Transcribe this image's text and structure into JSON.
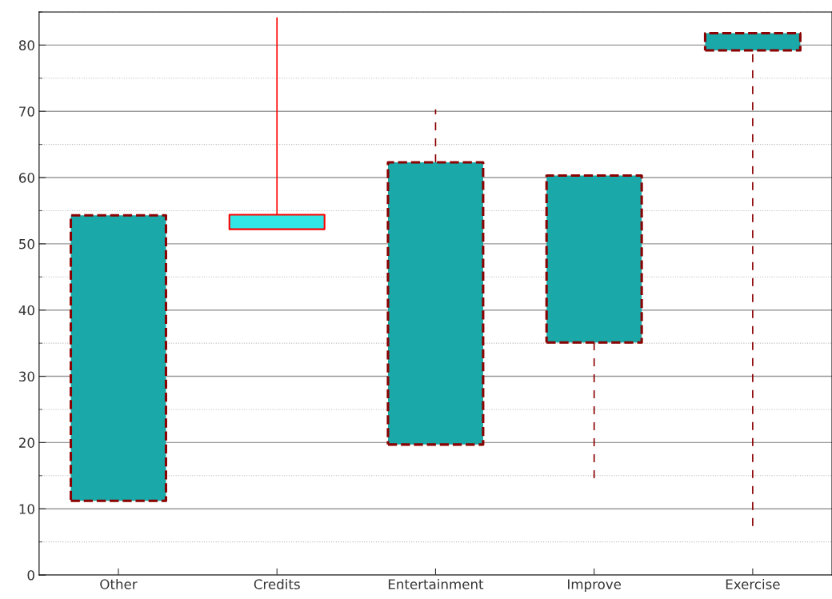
{
  "chart_data": {
    "type": "candlestick",
    "categories": [
      "Other",
      "Credits",
      "Entertainment",
      "Improve",
      "Exercise"
    ],
    "ohlc": [
      [
        54.3,
        54.3,
        11.2,
        11.2
      ],
      [
        52.2,
        84.1,
        52.2,
        54.4
      ],
      [
        62.3,
        70.3,
        19.7,
        19.7
      ],
      [
        60.3,
        60.3,
        14.6,
        35.1
      ],
      [
        81.8,
        81.8,
        7.4,
        79.2
      ]
    ],
    "colors": [
      "#1aa8a8",
      "#33e6e6",
      "#1aa8a8",
      "#1aa8a8",
      "#1aa8a8"
    ],
    "ylim": [
      0,
      85
    ],
    "yticks": [
      0,
      10,
      20,
      30,
      40,
      50,
      60,
      70,
      80
    ],
    "grid": "y"
  }
}
